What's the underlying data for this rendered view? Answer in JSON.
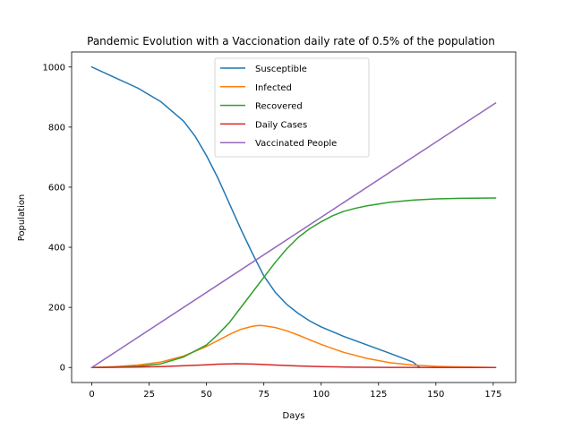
{
  "chart_data": {
    "type": "line",
    "title": "Pandemic Evolution with a Vaccionation daily rate of 0.5% of the population",
    "xlabel": "Days",
    "ylabel": "Population",
    "xlim": [
      -8.8,
      184.8
    ],
    "ylim": [
      -50,
      1050
    ],
    "xticks": [
      0,
      25,
      50,
      75,
      100,
      125,
      150,
      175
    ],
    "yticks": [
      0,
      200,
      400,
      600,
      800,
      1000
    ],
    "grid": false,
    "legend_position": "upper center",
    "series": [
      {
        "name": "Susceptible",
        "color": "#1f77b4",
        "x": [
          0,
          10,
          20,
          30,
          40,
          45,
          50,
          55,
          60,
          65,
          70,
          75,
          80,
          85,
          90,
          95,
          100,
          110,
          120,
          130,
          140,
          143
        ],
        "y": [
          1000,
          965,
          930,
          885,
          820,
          770,
          705,
          630,
          545,
          460,
          380,
          305,
          250,
          210,
          180,
          155,
          135,
          103,
          75,
          47,
          18,
          0
        ]
      },
      {
        "name": "Infected",
        "color": "#ff7f0e",
        "x": [
          0,
          10,
          20,
          30,
          40,
          50,
          55,
          60,
          65,
          70,
          73,
          75,
          80,
          85,
          90,
          95,
          100,
          105,
          110,
          120,
          130,
          140,
          150,
          160,
          176
        ],
        "y": [
          0,
          3,
          8,
          18,
          38,
          70,
          90,
          110,
          127,
          137,
          140,
          139,
          133,
          122,
          108,
          92,
          77,
          63,
          50,
          30,
          16,
          8,
          4,
          2,
          0
        ]
      },
      {
        "name": "Recovered",
        "color": "#2ca02c",
        "x": [
          0,
          10,
          20,
          30,
          40,
          50,
          55,
          60,
          65,
          70,
          75,
          80,
          85,
          90,
          95,
          100,
          105,
          110,
          115,
          120,
          130,
          140,
          150,
          160,
          176
        ],
        "y": [
          0,
          1,
          4,
          12,
          35,
          75,
          110,
          150,
          200,
          250,
          300,
          350,
          395,
          433,
          462,
          485,
          505,
          520,
          530,
          538,
          550,
          557,
          561,
          563,
          564
        ]
      },
      {
        "name": "Daily Cases",
        "color": "#d62728",
        "x": [
          0,
          10,
          20,
          30,
          40,
          50,
          55,
          60,
          63,
          65,
          70,
          75,
          80,
          90,
          100,
          110,
          120,
          130,
          140,
          150,
          176
        ],
        "y": [
          0,
          0.5,
          1.5,
          3,
          6,
          9,
          11,
          12,
          12.5,
          12.3,
          11.5,
          10,
          8,
          5,
          3,
          1.5,
          0.8,
          0.4,
          0.2,
          0.1,
          0
        ]
      },
      {
        "name": "Vaccinated People",
        "color": "#9467bd",
        "x": [
          0,
          176
        ],
        "y": [
          0,
          880
        ]
      }
    ]
  }
}
